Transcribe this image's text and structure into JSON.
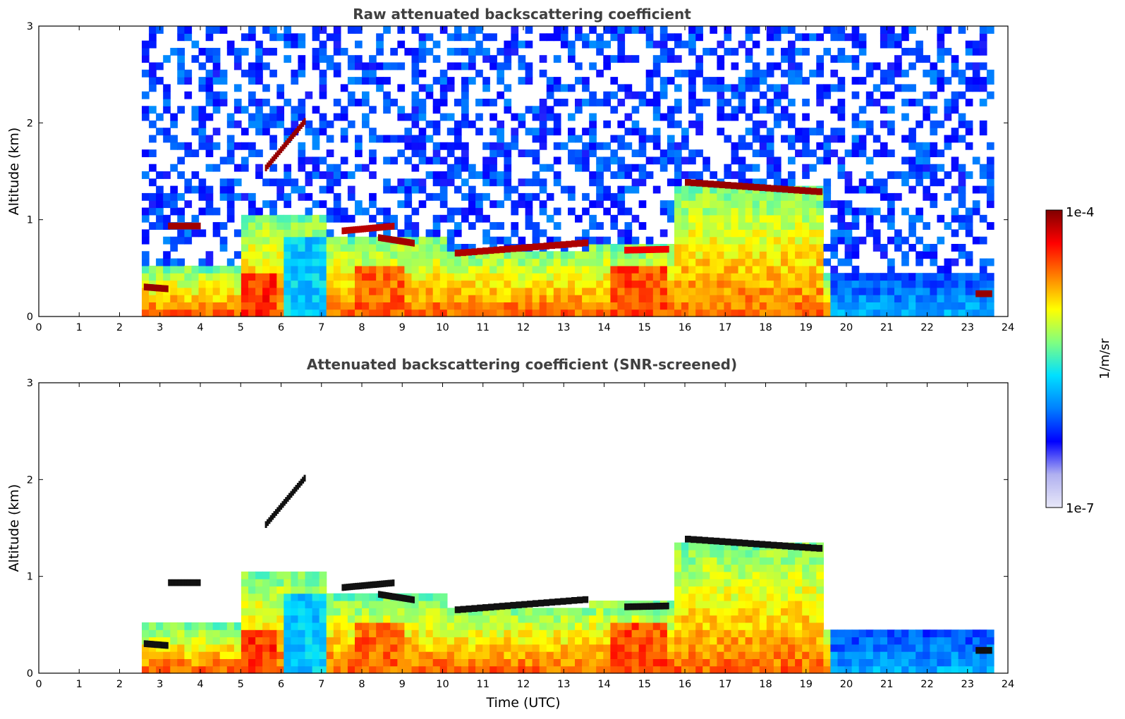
{
  "figure": "lidar-backscatter-time-height",
  "chart_data": [
    {
      "type": "heatmap",
      "title": "Raw attenuated backscattering coefficient",
      "xlabel": "",
      "ylabel": "Altitude (km)",
      "xlim": [
        0,
        24
      ],
      "ylim": [
        0,
        3
      ],
      "xticks": [
        "0",
        "1",
        "2",
        "3",
        "4",
        "5",
        "6",
        "7",
        "8",
        "9",
        "10",
        "11",
        "12",
        "13",
        "14",
        "15",
        "16",
        "17",
        "18",
        "19",
        "20",
        "21",
        "22",
        "23",
        "24"
      ],
      "yticks": [
        "0",
        "1",
        "2",
        "3"
      ],
      "data_start_utc": 2.55,
      "data_end_utc": 23.65,
      "screened": false
    },
    {
      "type": "heatmap",
      "title": "Attenuated backscattering coefficient (SNR-screened)",
      "xlabel": "Time (UTC)",
      "ylabel": "Altitude (km)",
      "xlim": [
        0,
        24
      ],
      "ylim": [
        0,
        3
      ],
      "xticks": [
        "0",
        "1",
        "2",
        "3",
        "4",
        "5",
        "6",
        "7",
        "8",
        "9",
        "10",
        "11",
        "12",
        "13",
        "14",
        "15",
        "16",
        "17",
        "18",
        "19",
        "20",
        "21",
        "22",
        "23",
        "24"
      ],
      "yticks": [
        "0",
        "1",
        "2",
        "3"
      ],
      "data_start_utc": 2.55,
      "data_end_utc": 23.65,
      "screened": true
    }
  ],
  "colorbar": {
    "label": "1/m/sr",
    "max_label": "1e-4",
    "min_label": "1e-7",
    "scale": "log",
    "colormap": "jet",
    "colors": [
      "#e8e8f8",
      "#b0b0f0",
      "#0000ff",
      "#0080ff",
      "#00e0ff",
      "#80ff80",
      "#ffff00",
      "#ff8000",
      "#ff0000",
      "#800000"
    ]
  },
  "layers": [
    {
      "name": "cloud-layer-a",
      "t0": 5.6,
      "t1": 6.6,
      "h0": 1.5,
      "h1": 2.0,
      "level": 0.98
    },
    {
      "name": "cloud-layer-b",
      "t0": 7.5,
      "t1": 8.8,
      "h0": 0.85,
      "h1": 0.9,
      "level": 0.95
    },
    {
      "name": "cloud-layer-c",
      "t0": 8.4,
      "t1": 9.3,
      "h0": 0.78,
      "h1": 0.72,
      "level": 0.97
    },
    {
      "name": "cloud-layer-d",
      "t0": 10.3,
      "t1": 13.6,
      "h0": 0.62,
      "h1": 0.73,
      "level": 0.96
    },
    {
      "name": "cloud-layer-e",
      "t0": 14.5,
      "t1": 15.6,
      "h0": 0.65,
      "h1": 0.66,
      "level": 0.9
    },
    {
      "name": "cloud-layer-f",
      "t0": 16.0,
      "t1": 19.4,
      "h0": 1.35,
      "h1": 1.25,
      "level": 0.98
    },
    {
      "name": "cloud-layer-g",
      "t0": 2.6,
      "t1": 3.2,
      "h0": 0.27,
      "h1": 0.25,
      "level": 0.98
    },
    {
      "name": "cloud-layer-h",
      "t0": 3.2,
      "t1": 4.0,
      "h0": 0.9,
      "h1": 0.9,
      "level": 0.97
    },
    {
      "name": "cloud-layer-i",
      "t0": 23.2,
      "t1": 23.6,
      "h0": 0.2,
      "h1": 0.2,
      "level": 0.98
    }
  ]
}
